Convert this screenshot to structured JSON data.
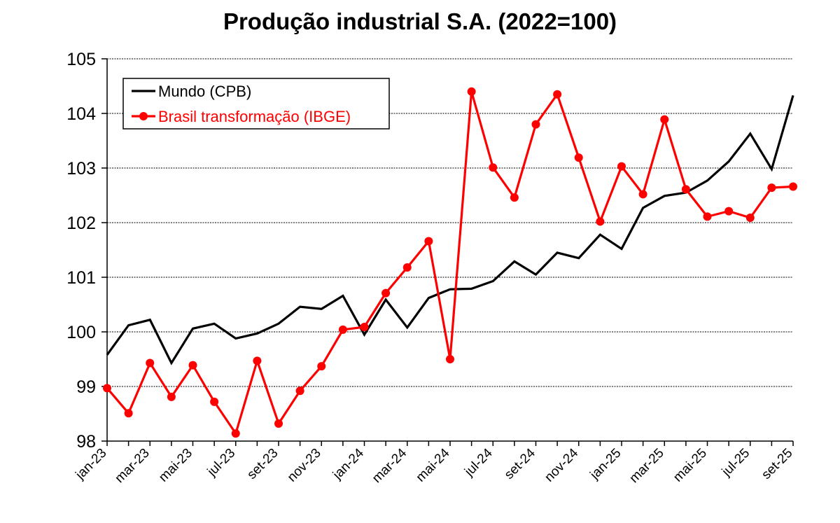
{
  "chart_data": {
    "type": "line",
    "title": "Produção industrial S.A. (2022=100)",
    "xlabel": "",
    "ylabel": "",
    "ylim": [
      98,
      105
    ],
    "yticks": [
      98,
      99,
      100,
      101,
      102,
      103,
      104,
      105
    ],
    "grid": "horizontal",
    "legend_position": "top-left",
    "x": [
      "jan-23",
      "fev-23",
      "mar-23",
      "abr-23",
      "mai-23",
      "jun-23",
      "jul-23",
      "ago-23",
      "set-23",
      "out-23",
      "nov-23",
      "dez-23",
      "jan-24",
      "fev-24",
      "mar-24",
      "abr-24",
      "mai-24",
      "jun-24",
      "jul-24",
      "ago-24",
      "set-24",
      "out-24",
      "nov-24",
      "dez-24",
      "jan-25",
      "fev-25",
      "mar-25",
      "abr-25",
      "mai-25",
      "jun-25",
      "jul-25",
      "ago-25",
      "set-25"
    ],
    "x_tick_labels": [
      "jan-23",
      "mar-23",
      "mai-23",
      "jul-23",
      "set-23",
      "nov-23",
      "jan-24",
      "mar-24",
      "mai-24",
      "jul-24",
      "set-24",
      "nov-24",
      "jan-25",
      "mar-25",
      "mai-25",
      "jul-25",
      "set-25"
    ],
    "series": [
      {
        "name": "Mundo (CPB)",
        "color": "#000000",
        "markers": false,
        "values": [
          99.58,
          100.12,
          100.22,
          99.43,
          100.06,
          100.15,
          99.88,
          99.97,
          100.15,
          100.46,
          100.42,
          100.66,
          99.95,
          100.59,
          100.08,
          100.62,
          100.78,
          100.79,
          100.93,
          101.29,
          101.05,
          101.45,
          101.35,
          101.78,
          101.52,
          102.27,
          102.49,
          102.55,
          102.77,
          103.12,
          103.63,
          102.98,
          104.33
        ]
      },
      {
        "name": "Brasil transformação (IBGE)",
        "color": "#ff0000",
        "markers": true,
        "values": [
          98.97,
          98.51,
          99.43,
          98.81,
          99.39,
          98.72,
          98.14,
          99.47,
          98.32,
          98.92,
          99.37,
          100.04,
          100.09,
          100.71,
          101.18,
          101.66,
          99.5,
          104.4,
          103.01,
          102.46,
          103.8,
          104.35,
          103.19,
          102.02,
          103.03,
          102.52,
          103.89,
          102.61,
          102.11,
          102.21,
          102.09,
          102.64,
          102.66
        ],
        "values_truncated_at_index": 15
      }
    ]
  }
}
